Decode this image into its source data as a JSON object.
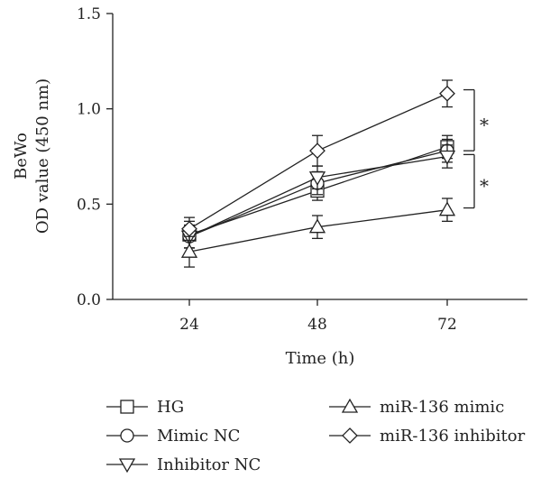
{
  "chart_data": {
    "type": "line",
    "ylabel_lines": [
      "BeWo",
      "OD value (450 nm)"
    ],
    "xlabel": "Time (h)",
    "x": [
      24,
      48,
      72
    ],
    "x_tick_labels": [
      "24",
      "48",
      "72"
    ],
    "ylim": [
      0,
      1.5
    ],
    "y_ticks": [
      0.0,
      0.5,
      1.0,
      1.5
    ],
    "y_tick_labels": [
      "0.0",
      "0.5",
      "1.0",
      "1.5"
    ],
    "grid": false,
    "legend_position": "bottom",
    "series": [
      {
        "name": "HG",
        "marker": "square",
        "values": [
          0.34,
          0.57,
          0.8
        ],
        "errors": [
          0.07,
          0.05,
          0.06
        ]
      },
      {
        "name": "Mimic NC",
        "marker": "circle",
        "values": [
          0.33,
          0.61,
          0.78
        ],
        "errors": [
          0.06,
          0.06,
          0.06
        ]
      },
      {
        "name": "Inhibitor NC",
        "marker": "triangle-down",
        "values": [
          0.33,
          0.64,
          0.75
        ],
        "errors": [
          0.06,
          0.06,
          0.06
        ]
      },
      {
        "name": "miR-136 mimic",
        "marker": "triangle-up",
        "values": [
          0.25,
          0.38,
          0.47
        ],
        "errors": [
          0.08,
          0.06,
          0.06
        ]
      },
      {
        "name": "miR-136 inhibitor",
        "marker": "diamond",
        "values": [
          0.37,
          0.78,
          1.08
        ],
        "errors": [
          0.06,
          0.08,
          0.07
        ]
      }
    ],
    "annotations": [
      {
        "text": "*",
        "between": [
          1.1,
          0.78
        ]
      },
      {
        "text": "*",
        "between": [
          0.76,
          0.48
        ]
      }
    ]
  }
}
